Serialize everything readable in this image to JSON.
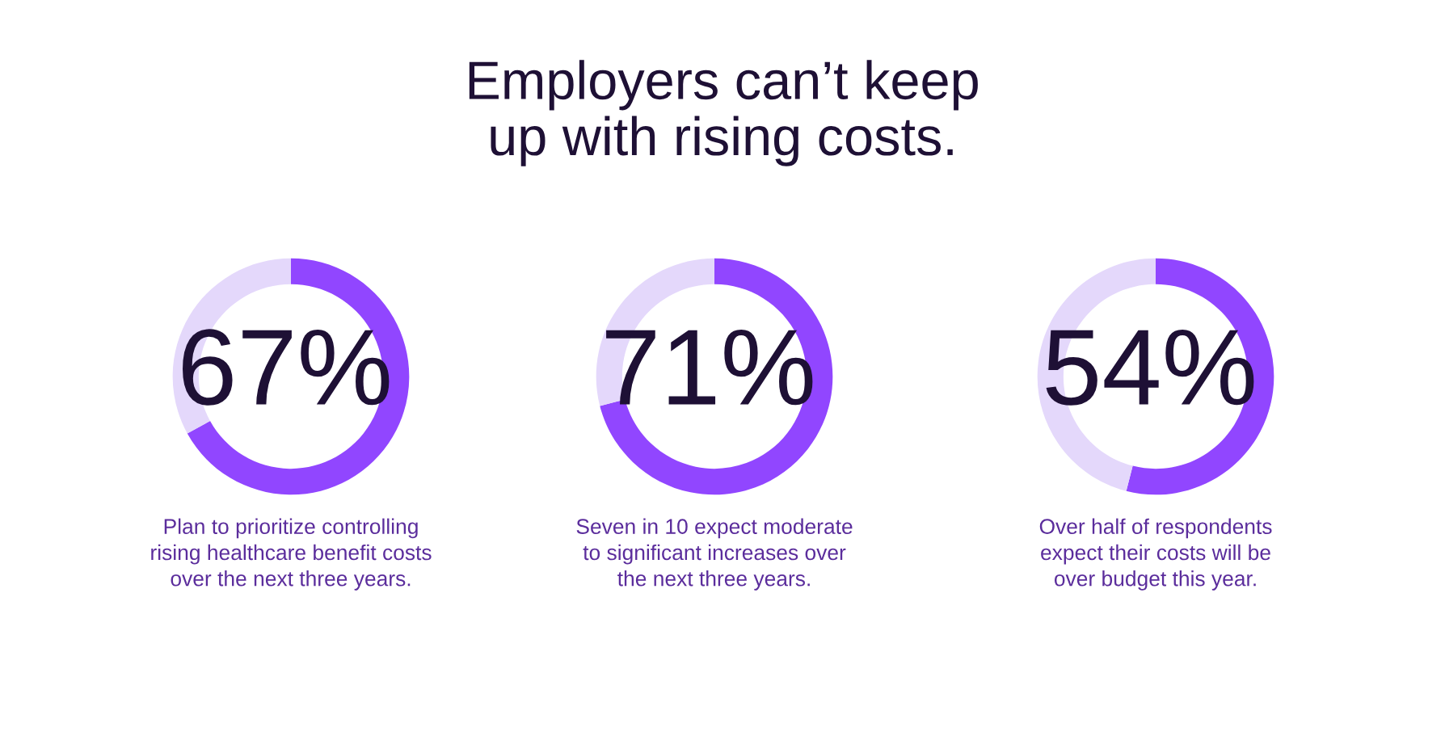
{
  "chart_data": [
    {
      "type": "donut",
      "categories": [
        null,
        null
      ],
      "values": [
        67,
        33
      ],
      "colors": [
        "#9146ff",
        "#e4d8fb"
      ],
      "value_labels": [
        "67%",
        null
      ],
      "annotations": [
        "Plan to prioritize controlling\nrising healthcare benefit costs\nover the next three years."
      ]
    },
    {
      "type": "donut",
      "title": "Employers can’t keep\nup with rising costs.",
      "categories": [
        null,
        null
      ],
      "values": [
        71,
        29
      ],
      "colors": [
        "#9146ff",
        "#e4d8fb"
      ],
      "value_labels": [
        "71%",
        null
      ],
      "annotations": [
        "Seven in 10 expect moderate\nto significant increases over\nthe next three years."
      ]
    },
    {
      "type": "donut",
      "categories": [
        null,
        null
      ],
      "values": [
        54,
        46
      ],
      "colors": [
        "#9146ff",
        "#e4d8fb"
      ],
      "value_labels": [
        "54%",
        null
      ],
      "annotations": [
        "Over half of respondents\nexpect their costs will be\nover budget this year."
      ]
    }
  ]
}
